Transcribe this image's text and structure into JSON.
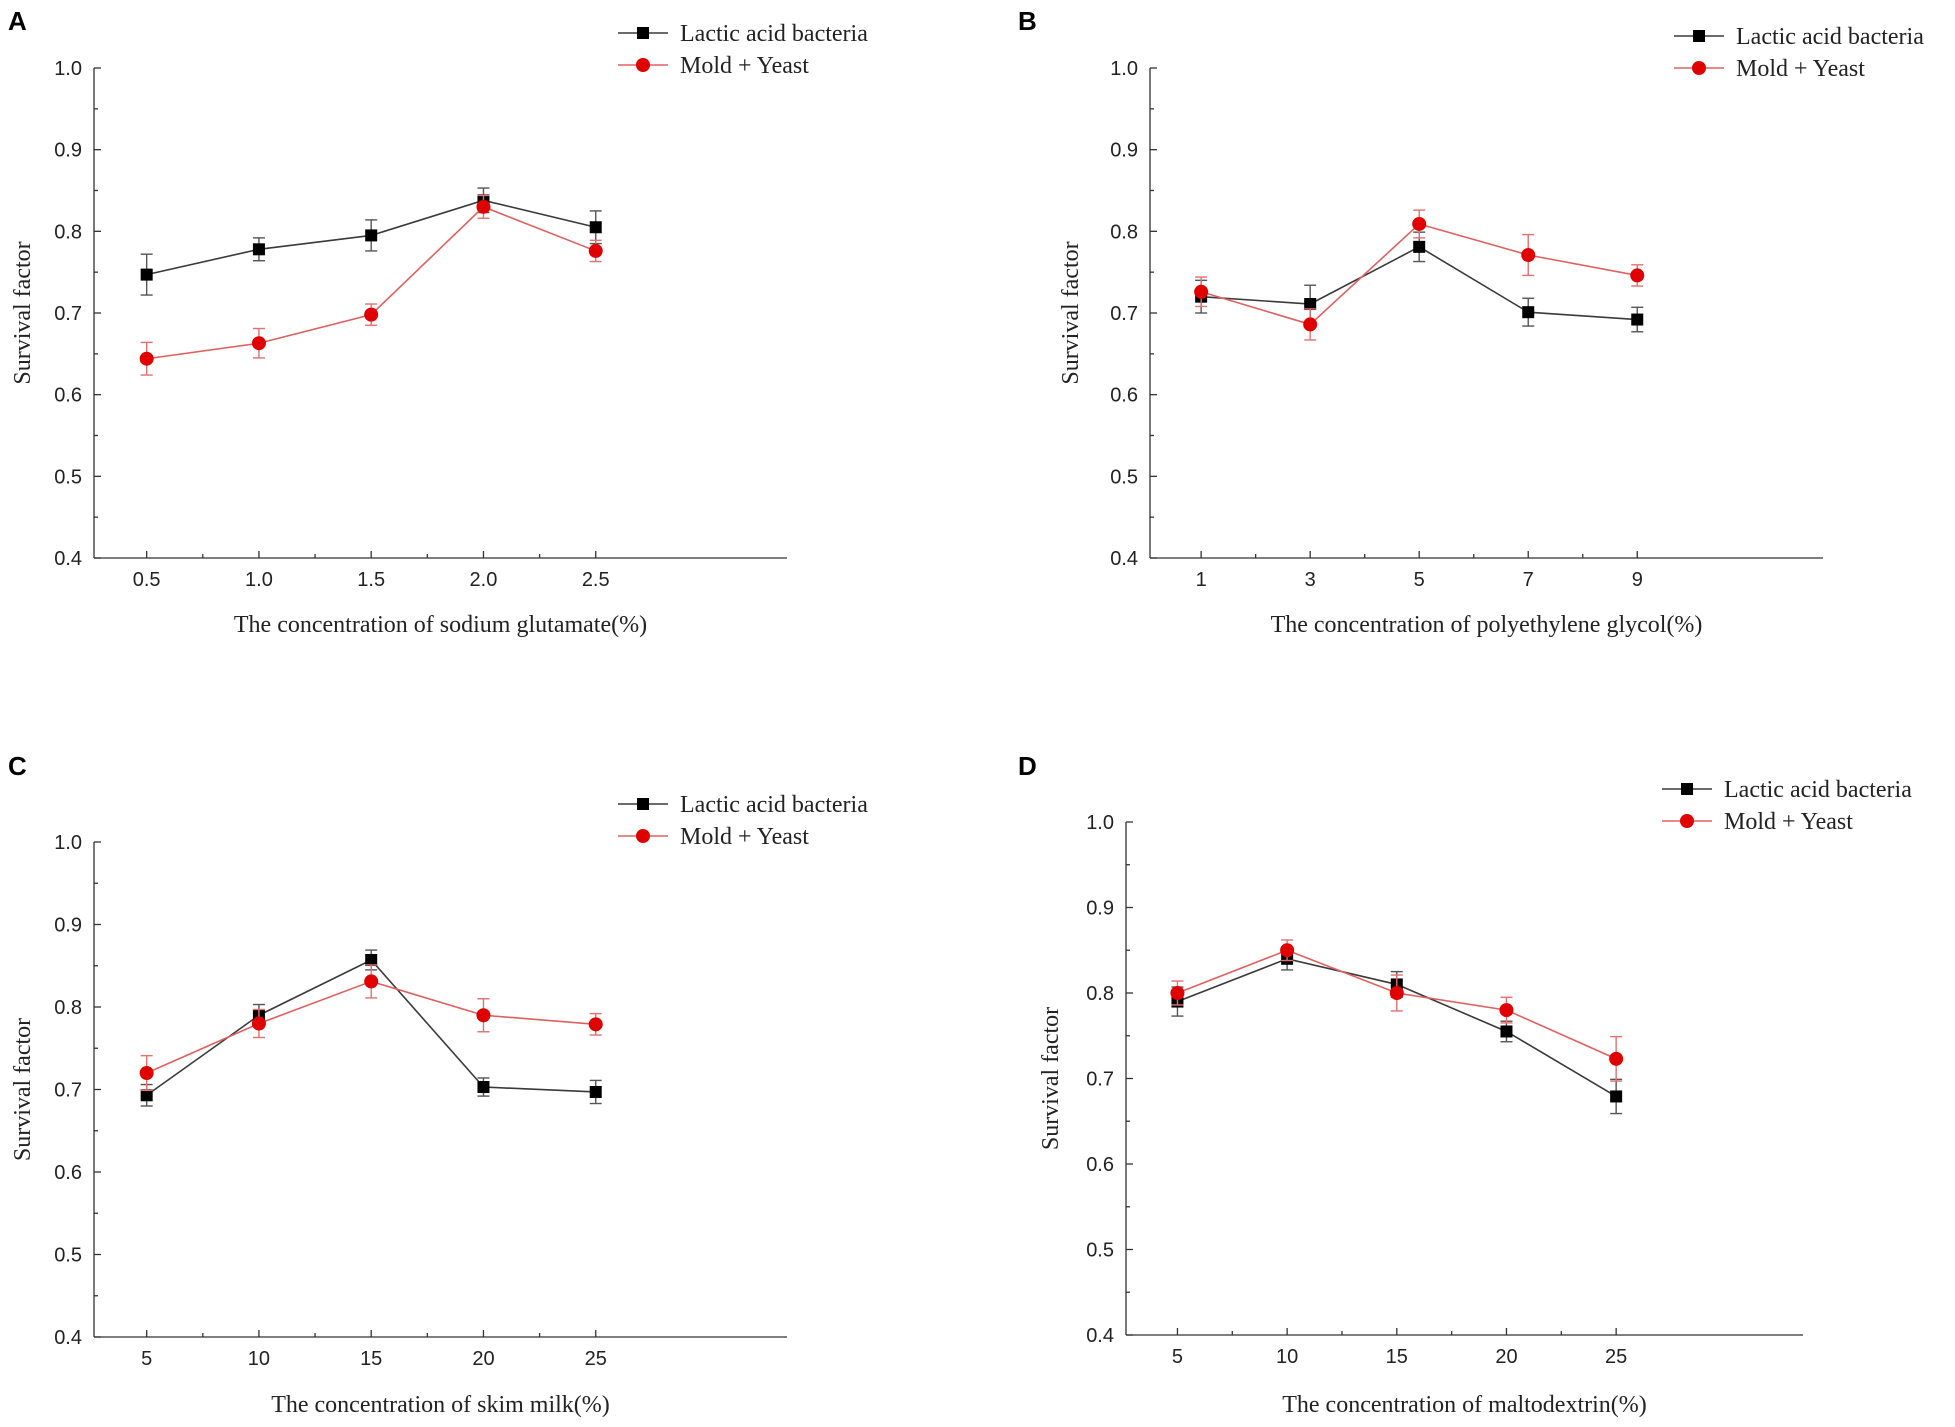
{
  "colors": {
    "lab": "#3a3a3a",
    "mold": "#e06060",
    "lab_marker": "#000000",
    "mold_marker": "#e00000"
  },
  "chart_data": [
    {
      "panel": "A",
      "type": "line",
      "categories": [
        "0.5",
        "1.0",
        "1.5",
        "2.0",
        "2.5"
      ],
      "xlabel": "The concentration of  sodium glutamate(%)",
      "ylabel": "Survival factor",
      "ylim": [
        0.4,
        1.0
      ],
      "yticks": [
        "0.4",
        "0.5",
        "0.6",
        "0.7",
        "0.8",
        "0.9",
        "1.0"
      ],
      "legend_position": "top-right",
      "series": [
        {
          "name": "Lactic acid bacteria",
          "values": [
            0.747,
            0.778,
            0.795,
            0.838,
            0.805
          ],
          "errors": [
            0.025,
            0.014,
            0.019,
            0.015,
            0.02
          ]
        },
        {
          "name": "Mold + Yeast",
          "values": [
            0.644,
            0.663,
            0.698,
            0.83,
            0.776
          ],
          "errors": [
            0.02,
            0.018,
            0.013,
            0.014,
            0.013
          ]
        }
      ]
    },
    {
      "panel": "B",
      "type": "line",
      "categories": [
        "1",
        "3",
        "5",
        "7",
        "9"
      ],
      "xlabel": "The concentration of polyethylene glycol(%)",
      "ylabel": "Survival factor",
      "ylim": [
        0.4,
        1.0
      ],
      "yticks": [
        "0.4",
        "0.5",
        "0.6",
        "0.7",
        "0.8",
        "0.9",
        "1.0"
      ],
      "legend_position": "top-right",
      "series": [
        {
          "name": "Lactic acid bacteria",
          "values": [
            0.72,
            0.711,
            0.781,
            0.701,
            0.692
          ],
          "errors": [
            0.02,
            0.023,
            0.018,
            0.017,
            0.015
          ]
        },
        {
          "name": "Mold + Yeast",
          "values": [
            0.726,
            0.686,
            0.809,
            0.771,
            0.746
          ],
          "errors": [
            0.018,
            0.019,
            0.017,
            0.025,
            0.013
          ]
        }
      ]
    },
    {
      "panel": "C",
      "type": "line",
      "categories": [
        "5",
        "10",
        "15",
        "20",
        "25"
      ],
      "xlabel": "The concentration of skim milk(%)",
      "ylabel": "Survival factor",
      "ylim": [
        0.4,
        1.0
      ],
      "yticks": [
        "0.4",
        "0.5",
        "0.6",
        "0.7",
        "0.8",
        "0.9",
        "1.0"
      ],
      "legend_position": "top-right",
      "series": [
        {
          "name": "Lactic acid bacteria",
          "values": [
            0.693,
            0.79,
            0.857,
            0.703,
            0.697
          ],
          "errors": [
            0.013,
            0.013,
            0.012,
            0.011,
            0.014
          ]
        },
        {
          "name": "Mold + Yeast",
          "values": [
            0.72,
            0.78,
            0.831,
            0.79,
            0.779
          ],
          "errors": [
            0.021,
            0.017,
            0.02,
            0.02,
            0.013
          ]
        }
      ]
    },
    {
      "panel": "D",
      "type": "line",
      "categories": [
        "5",
        "10",
        "15",
        "20",
        "25"
      ],
      "xlabel": "The concentration of  maltodextrin(%)",
      "ylabel": "Survival factor",
      "ylim": [
        0.4,
        1.0
      ],
      "yticks": [
        "0.4",
        "0.5",
        "0.6",
        "0.7",
        "0.8",
        "0.9",
        "1.0"
      ],
      "legend_position": "top-right",
      "series": [
        {
          "name": "Lactic acid bacteria",
          "values": [
            0.79,
            0.84,
            0.81,
            0.755,
            0.679
          ],
          "errors": [
            0.017,
            0.013,
            0.015,
            0.012,
            0.02
          ]
        },
        {
          "name": "Mold + Yeast",
          "values": [
            0.8,
            0.85,
            0.8,
            0.78,
            0.723
          ],
          "errors": [
            0.014,
            0.012,
            0.021,
            0.015,
            0.026
          ]
        }
      ]
    }
  ]
}
